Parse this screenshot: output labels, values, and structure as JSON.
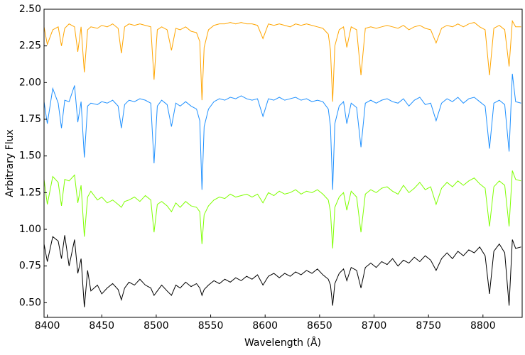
{
  "chart_data": {
    "type": "line",
    "x_label": "Wavelength (Å)",
    "y_label": "Arbitrary Flux",
    "xlim": [
      8397,
      8836
    ],
    "ylim": [
      0.4,
      2.5
    ],
    "xticks": [
      8400,
      8450,
      8500,
      8550,
      8600,
      8650,
      8700,
      8750,
      8800
    ],
    "yticks": [
      {
        "value": 0.5,
        "label": "0.50"
      },
      {
        "value": 0.75,
        "label": "0.75"
      },
      {
        "value": 1.0,
        "label": "1.00"
      },
      {
        "value": 1.25,
        "label": "1.25"
      },
      {
        "value": 1.5,
        "label": "1.50"
      },
      {
        "value": 1.75,
        "label": "1.75"
      },
      {
        "value": 2.0,
        "label": "2.00"
      },
      {
        "value": 2.25,
        "label": "2.25"
      },
      {
        "value": 2.5,
        "label": "2.50"
      }
    ],
    "x": [
      8397,
      8400,
      8405,
      8410,
      8413,
      8416,
      8420,
      8425,
      8428,
      8431,
      8434,
      8437,
      8440,
      8446,
      8450,
      8455,
      8460,
      8465,
      8468,
      8471,
      8475,
      8480,
      8485,
      8490,
      8495,
      8498,
      8501,
      8505,
      8510,
      8514,
      8518,
      8522,
      8527,
      8532,
      8537,
      8540,
      8542,
      8544,
      8548,
      8553,
      8558,
      8563,
      8568,
      8573,
      8578,
      8583,
      8588,
      8593,
      8598,
      8603,
      8608,
      8613,
      8618,
      8623,
      8628,
      8633,
      8638,
      8643,
      8648,
      8653,
      8658,
      8660,
      8662,
      8664,
      8668,
      8672,
      8675,
      8679,
      8684,
      8688,
      8692,
      8697,
      8702,
      8707,
      8712,
      8717,
      8722,
      8727,
      8732,
      8737,
      8742,
      8747,
      8752,
      8757,
      8762,
      8767,
      8772,
      8777,
      8782,
      8787,
      8792,
      8797,
      8802,
      8806,
      8810,
      8815,
      8820,
      8824,
      8827,
      8830,
      8835
    ],
    "series": [
      {
        "color": "#ffa500",
        "values": [
          2.38,
          2.26,
          2.36,
          2.38,
          2.25,
          2.37,
          2.4,
          2.38,
          2.21,
          2.38,
          2.07,
          2.36,
          2.38,
          2.37,
          2.39,
          2.38,
          2.4,
          2.37,
          2.2,
          2.38,
          2.4,
          2.39,
          2.4,
          2.39,
          2.38,
          2.02,
          2.36,
          2.38,
          2.36,
          2.22,
          2.37,
          2.36,
          2.38,
          2.35,
          2.34,
          2.28,
          1.88,
          2.24,
          2.36,
          2.39,
          2.4,
          2.4,
          2.41,
          2.4,
          2.41,
          2.4,
          2.4,
          2.39,
          2.3,
          2.4,
          2.39,
          2.4,
          2.39,
          2.38,
          2.4,
          2.39,
          2.4,
          2.39,
          2.38,
          2.37,
          2.33,
          2.22,
          1.87,
          2.25,
          2.36,
          2.38,
          2.24,
          2.38,
          2.36,
          2.05,
          2.37,
          2.38,
          2.37,
          2.38,
          2.39,
          2.38,
          2.37,
          2.39,
          2.36,
          2.38,
          2.39,
          2.37,
          2.36,
          2.27,
          2.37,
          2.39,
          2.38,
          2.4,
          2.38,
          2.4,
          2.41,
          2.38,
          2.36,
          2.05,
          2.37,
          2.39,
          2.36,
          2.11,
          2.42,
          2.38,
          2.38
        ]
      },
      {
        "color": "#1e90ff",
        "values": [
          1.87,
          1.72,
          1.96,
          1.86,
          1.69,
          1.88,
          1.87,
          1.98,
          1.73,
          1.87,
          1.49,
          1.84,
          1.86,
          1.85,
          1.87,
          1.86,
          1.88,
          1.84,
          1.69,
          1.85,
          1.88,
          1.87,
          1.89,
          1.88,
          1.86,
          1.45,
          1.84,
          1.88,
          1.85,
          1.7,
          1.86,
          1.84,
          1.87,
          1.84,
          1.82,
          1.74,
          1.27,
          1.7,
          1.82,
          1.87,
          1.89,
          1.88,
          1.9,
          1.89,
          1.91,
          1.89,
          1.88,
          1.89,
          1.77,
          1.89,
          1.88,
          1.9,
          1.88,
          1.89,
          1.9,
          1.88,
          1.89,
          1.87,
          1.88,
          1.87,
          1.82,
          1.7,
          1.27,
          1.72,
          1.84,
          1.87,
          1.72,
          1.86,
          1.83,
          1.56,
          1.86,
          1.88,
          1.86,
          1.88,
          1.89,
          1.87,
          1.86,
          1.89,
          1.84,
          1.88,
          1.9,
          1.85,
          1.86,
          1.74,
          1.86,
          1.89,
          1.87,
          1.9,
          1.86,
          1.89,
          1.9,
          1.87,
          1.84,
          1.55,
          1.86,
          1.88,
          1.85,
          1.53,
          2.06,
          1.87,
          1.86
        ]
      },
      {
        "color": "#7fff00",
        "values": [
          1.34,
          1.17,
          1.36,
          1.32,
          1.16,
          1.34,
          1.33,
          1.37,
          1.18,
          1.3,
          0.95,
          1.22,
          1.26,
          1.2,
          1.22,
          1.18,
          1.2,
          1.17,
          1.15,
          1.19,
          1.2,
          1.22,
          1.19,
          1.23,
          1.2,
          0.98,
          1.17,
          1.19,
          1.16,
          1.12,
          1.18,
          1.15,
          1.19,
          1.16,
          1.15,
          1.12,
          0.9,
          1.1,
          1.16,
          1.2,
          1.22,
          1.21,
          1.24,
          1.22,
          1.23,
          1.24,
          1.22,
          1.24,
          1.18,
          1.25,
          1.23,
          1.26,
          1.24,
          1.25,
          1.27,
          1.24,
          1.26,
          1.25,
          1.27,
          1.24,
          1.2,
          1.12,
          0.87,
          1.15,
          1.22,
          1.25,
          1.13,
          1.26,
          1.22,
          0.98,
          1.24,
          1.27,
          1.25,
          1.28,
          1.29,
          1.26,
          1.24,
          1.3,
          1.25,
          1.28,
          1.32,
          1.27,
          1.29,
          1.17,
          1.28,
          1.32,
          1.29,
          1.33,
          1.3,
          1.33,
          1.35,
          1.31,
          1.28,
          1.02,
          1.29,
          1.33,
          1.3,
          1.02,
          1.4,
          1.34,
          1.33
        ]
      },
      {
        "color": "#000000",
        "values": [
          0.9,
          0.78,
          0.95,
          0.92,
          0.8,
          0.96,
          0.75,
          0.93,
          0.7,
          0.8,
          0.47,
          0.72,
          0.58,
          0.62,
          0.56,
          0.6,
          0.63,
          0.59,
          0.52,
          0.6,
          0.64,
          0.62,
          0.66,
          0.62,
          0.6,
          0.55,
          0.58,
          0.62,
          0.58,
          0.55,
          0.62,
          0.6,
          0.64,
          0.61,
          0.63,
          0.6,
          0.55,
          0.59,
          0.62,
          0.65,
          0.63,
          0.66,
          0.64,
          0.67,
          0.65,
          0.68,
          0.66,
          0.69,
          0.62,
          0.68,
          0.7,
          0.67,
          0.7,
          0.68,
          0.71,
          0.69,
          0.72,
          0.7,
          0.73,
          0.69,
          0.66,
          0.62,
          0.48,
          0.63,
          0.7,
          0.73,
          0.65,
          0.74,
          0.72,
          0.6,
          0.74,
          0.77,
          0.74,
          0.78,
          0.76,
          0.8,
          0.75,
          0.79,
          0.77,
          0.81,
          0.78,
          0.82,
          0.79,
          0.72,
          0.8,
          0.84,
          0.8,
          0.85,
          0.82,
          0.86,
          0.84,
          0.88,
          0.82,
          0.56,
          0.85,
          0.9,
          0.84,
          0.48,
          0.93,
          0.87,
          0.88
        ]
      }
    ]
  }
}
